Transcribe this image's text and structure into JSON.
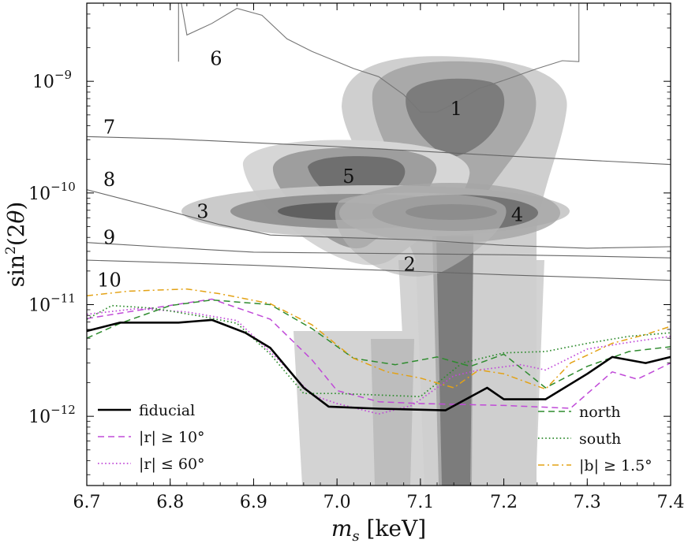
{
  "chart_data": {
    "type": "line",
    "title": "",
    "xlabel": "m_s [keV]",
    "ylabel": "sin^2(2θ)",
    "xlim": [
      6.7,
      7.4
    ],
    "ylim_log10": [
      -12.62,
      -8.3
    ],
    "yscale": "log",
    "x_ticks": [
      6.7,
      6.8,
      6.9,
      7.0,
      7.1,
      7.2,
      7.3,
      7.4
    ],
    "x_tick_labels": [
      "6.7",
      "6.8",
      "6.9",
      "7.0",
      "7.1",
      "7.2",
      "7.3",
      "7.4"
    ],
    "y_ticks_log10": [
      -12,
      -11,
      -10,
      -9
    ],
    "y_tick_labels": [
      {
        "base": "10",
        "exp": "−12"
      },
      {
        "base": "10",
        "exp": "−11"
      },
      {
        "base": "10",
        "exp": "−10"
      },
      {
        "base": "10",
        "exp": "−9"
      }
    ],
    "series": [
      {
        "name": "fiducial",
        "legend": "fiducial",
        "color": "#000000",
        "dash": "solid",
        "width": 2.6,
        "x": [
          6.7,
          6.74,
          6.81,
          6.85,
          6.89,
          6.92,
          6.96,
          6.99,
          7.05,
          7.13,
          7.18,
          7.2,
          7.25,
          7.3,
          7.33,
          7.37,
          7.4
        ],
        "y": [
          5.8e-12,
          6.9e-12,
          6.9e-12,
          7.3e-12,
          5.6e-12,
          4.1e-12,
          1.8e-12,
          1.22e-12,
          1.17e-12,
          1.13e-12,
          1.8e-12,
          1.42e-12,
          1.42e-12,
          2.4e-12,
          3.4e-12,
          3e-12,
          3.4e-12
        ]
      },
      {
        "name": "r10",
        "legend_prefix": "|r| ≥ 10",
        "legend": "|r| ≥ 10°",
        "color": "#c04ad8",
        "dash": "8,5",
        "width": 1.5,
        "x": [
          6.7,
          6.77,
          6.85,
          6.92,
          6.97,
          7.0,
          7.05,
          7.1,
          7.2,
          7.28,
          7.33,
          7.36,
          7.4
        ],
        "y": [
          7.5e-12,
          9.1e-12,
          1.12e-11,
          7.4e-12,
          3.2e-12,
          1.7e-12,
          1.35e-12,
          1.3e-12,
          1.25e-12,
          1.18e-12,
          2.5e-12,
          2.15e-12,
          3e-12
        ]
      },
      {
        "name": "r60",
        "legend_prefix": "|r| ≤ 60",
        "legend": "|r| ≤ 60°",
        "color": "#c04ad8",
        "dash": "1.6,3",
        "width": 1.7,
        "x": [
          6.7,
          6.76,
          6.82,
          6.88,
          6.93,
          6.97,
          7.0,
          7.05,
          7.09,
          7.14,
          7.17,
          7.22,
          7.25,
          7.3,
          7.35,
          7.4
        ],
        "y": [
          8.2e-12,
          9.2e-12,
          8.6e-12,
          7.2e-12,
          3.2e-12,
          1.55e-12,
          1.3e-12,
          1.05e-12,
          1.25e-12,
          2.3e-12,
          2.6e-12,
          2.9e-12,
          2.6e-12,
          4e-12,
          4.6e-12,
          5.2e-12
        ]
      },
      {
        "name": "north",
        "legend": "north",
        "color": "#2e8b2e",
        "dash": "8,5",
        "width": 1.5,
        "x": [
          6.7,
          6.74,
          6.8,
          6.85,
          6.92,
          6.97,
          7.02,
          7.07,
          7.12,
          7.16,
          7.2,
          7.25,
          7.3,
          7.35,
          7.4
        ],
        "y": [
          5e-12,
          6.8e-12,
          9.8e-12,
          1.1e-11,
          1e-11,
          6.1e-12,
          3.3e-12,
          2.9e-12,
          3.4e-12,
          2.8e-12,
          3.6e-12,
          1.8e-12,
          2.8e-12,
          3.8e-12,
          4.2e-12
        ]
      },
      {
        "name": "south",
        "legend": "south",
        "color": "#2e8b2e",
        "dash": "1.6,3",
        "width": 1.7,
        "x": [
          6.7,
          6.73,
          6.78,
          6.84,
          6.88,
          6.92,
          6.96,
          7.0,
          7.05,
          7.1,
          7.15,
          7.2,
          7.25,
          7.3,
          7.35,
          7.4
        ],
        "y": [
          7.4e-12,
          9.8e-12,
          9.3e-12,
          7.8e-12,
          6.8e-12,
          3.6e-12,
          1.6e-12,
          1.6e-12,
          1.55e-12,
          1.5e-12,
          3e-12,
          3.7e-12,
          3.8e-12,
          4.5e-12,
          5.2e-12,
          5.6e-12
        ]
      },
      {
        "name": "b15",
        "legend_prefix": "|b| ≥ 1.5",
        "legend": "|b| ≥ 1.5°",
        "color": "#e3a215",
        "dash": "8,4,2,4",
        "width": 1.5,
        "x": [
          6.7,
          6.75,
          6.82,
          6.86,
          6.92,
          6.97,
          7.02,
          7.06,
          7.1,
          7.14,
          7.17,
          7.2,
          7.25,
          7.28,
          7.33,
          7.37,
          7.4
        ],
        "y": [
          1.2e-11,
          1.32e-11,
          1.38e-11,
          1.25e-11,
          1.02e-11,
          6.6e-12,
          3.3e-12,
          2.5e-12,
          2.2e-12,
          1.8e-12,
          2.6e-12,
          2.4e-12,
          1.75e-12,
          3e-12,
          4.5e-12,
          5.4e-12,
          6.4e-12
        ]
      }
    ],
    "constraint_lines": [
      {
        "label": "6",
        "label_at": [
          6.855,
          1.4e-09
        ],
        "color": "#777777",
        "width": 1.1,
        "x": [
          6.81,
          6.81,
          6.82,
          6.85,
          6.88,
          6.91,
          6.94,
          6.97,
          7.0,
          7.02,
          7.05,
          7.08,
          7.1,
          7.12,
          7.14,
          7.17,
          7.2,
          7.24,
          7.27,
          7.29,
          7.29,
          6.81
        ],
        "y": [
          1.5e-09,
          6.9e-09,
          2.6e-09,
          3.3e-09,
          4.5e-09,
          3.9e-09,
          2.4e-09,
          1.85e-09,
          1.5e-09,
          1.3e-09,
          1.1e-09,
          7.6e-10,
          5.3e-10,
          5.3e-10,
          6.3e-10,
          8.6e-10,
          1.02e-09,
          1.3e-09,
          1.53e-09,
          1.5e-09,
          6.9e-09,
          6.9e-09
        ]
      },
      {
        "label": "7",
        "label_at": [
          6.727,
          3.4e-10
        ],
        "color": "#666666",
        "width": 1.1,
        "x": [
          6.7,
          6.8,
          7.0,
          7.2,
          7.4
        ],
        "y": [
          3.2e-10,
          3.05e-10,
          2.6e-10,
          2.15e-10,
          1.8e-10
        ]
      },
      {
        "label": "8",
        "label_at": [
          6.727,
          1.15e-10
        ],
        "color": "#666666",
        "width": 1.1,
        "x": [
          6.7,
          6.78,
          6.86,
          6.92,
          7.0,
          7.1,
          7.2,
          7.3,
          7.4
        ],
        "y": [
          1.07e-10,
          7.5e-11,
          5.2e-11,
          4.2e-11,
          4e-11,
          3.8e-11,
          3.4e-11,
          3.2e-11,
          3.3e-11
        ]
      },
      {
        "label": "9",
        "label_at": [
          6.727,
          3.5e-11
        ],
        "color": "#666666",
        "width": 1.1,
        "x": [
          6.7,
          6.8,
          6.9,
          7.0,
          7.1,
          7.2,
          7.3,
          7.4
        ],
        "y": [
          3.6e-11,
          3.25e-11,
          2.95e-11,
          2.9e-11,
          2.85e-11,
          2.8e-11,
          2.72e-11,
          2.62e-11
        ]
      },
      {
        "label": "10",
        "label_at": [
          6.727,
          1.45e-11
        ],
        "color": "#666666",
        "width": 1.1,
        "x": [
          6.7,
          6.8,
          6.9,
          7.0,
          7.1,
          7.2,
          7.3,
          7.4
        ],
        "y": [
          2.5e-11,
          2.38e-11,
          2.25e-11,
          2.1e-11,
          1.98e-11,
          1.85e-11,
          1.75e-11,
          1.65e-11
        ]
      }
    ],
    "regions": [
      {
        "label": "1",
        "label_at": [
          7.143,
          5.7e-10
        ]
      },
      {
        "label": "2",
        "label_at": [
          7.087,
          2.3e-11
        ]
      },
      {
        "label": "3",
        "label_at": [
          6.839,
          6.8e-11
        ]
      },
      {
        "label": "4",
        "label_at": [
          7.216,
          6.4e-11
        ]
      },
      {
        "label": "5",
        "label_at": [
          7.014,
          1.4e-10
        ]
      }
    ]
  }
}
